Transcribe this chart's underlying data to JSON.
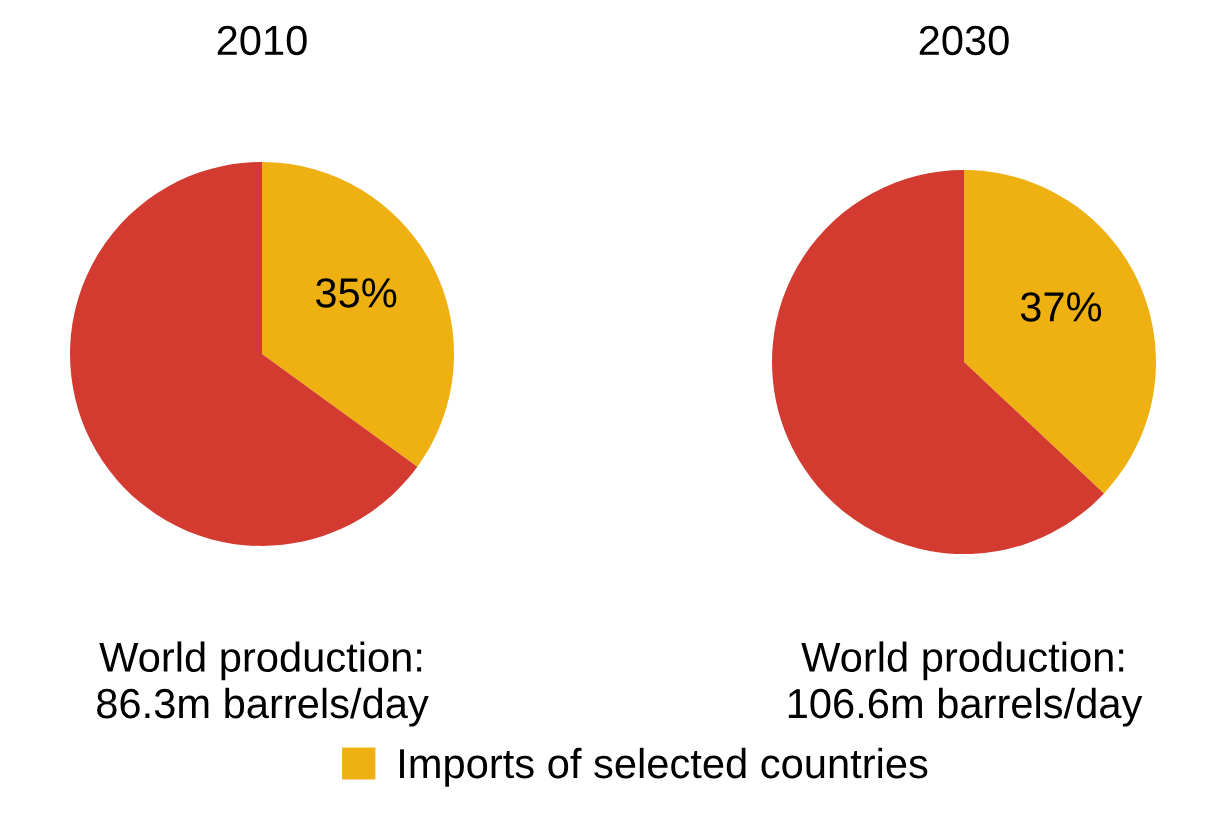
{
  "chart_data": [
    {
      "type": "pie",
      "title": "2010",
      "categories": [
        "Imports of selected countries",
        null
      ],
      "values": [
        35,
        65
      ],
      "colors": [
        "#eeb111",
        "#d33b30"
      ],
      "value_labels": [
        "35%",
        null
      ],
      "annotations": [
        "World production:\n86.3m barrels/day"
      ],
      "legend": "bottom"
    },
    {
      "type": "pie",
      "title": "2030",
      "categories": [
        null,
        null
      ],
      "values": [
        37,
        63
      ],
      "colors": [
        "#eeb111",
        "#d33b30"
      ],
      "value_labels": [
        "37%",
        null
      ],
      "annotations": [
        "World production:\n106.6m barrels/day"
      ]
    }
  ]
}
